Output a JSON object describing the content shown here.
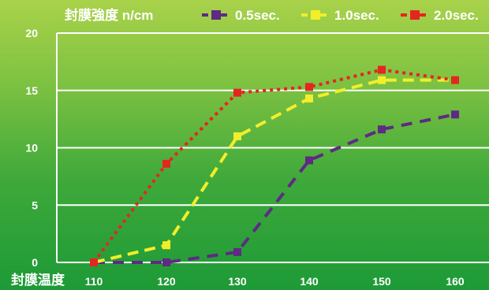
{
  "chart_data": {
    "type": "line",
    "title": "封膜強度 n/cm",
    "xlabel": "封膜温度",
    "x": [
      110,
      120,
      130,
      140,
      150,
      160
    ],
    "ylim": [
      0,
      20
    ],
    "yticks": [
      0,
      5,
      10,
      15,
      20
    ],
    "grid": true,
    "legend_position": "top",
    "series": [
      {
        "name": "0.5sec.",
        "color": "#5e2a84",
        "values": [
          0,
          0,
          0.9,
          8.9,
          11.6,
          12.9
        ]
      },
      {
        "name": "1.0sec.",
        "color": "#f2ee2a",
        "values": [
          0,
          1.5,
          11,
          14.3,
          15.9,
          15.9
        ]
      },
      {
        "name": "2.0sec.",
        "color": "#e5261f",
        "values": [
          0,
          8.6,
          14.8,
          15.3,
          16.8,
          15.9
        ]
      }
    ]
  }
}
